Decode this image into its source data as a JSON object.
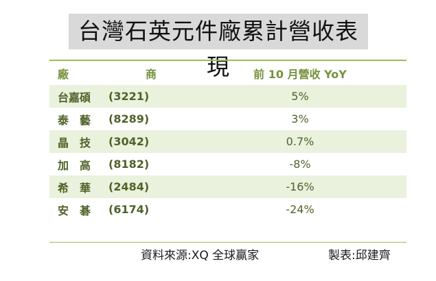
{
  "title": "台灣石英元件廠累計營收表現",
  "chart_data": {
    "type": "table",
    "columns": [
      "廠　　商",
      "前 10 月營收 YoY"
    ],
    "column_header_name_left": "廠",
    "column_header_name_right": "商",
    "rows": [
      {
        "name": "台嘉碩",
        "code": "(3221)",
        "yoy": "5%"
      },
      {
        "name": "泰　藝",
        "code": "(8289)",
        "yoy": "3%"
      },
      {
        "name": "晶　技",
        "code": "(3042)",
        "yoy": "0.7%"
      },
      {
        "name": "加　高",
        "code": "(8182)",
        "yoy": "-8%"
      },
      {
        "name": "希　華",
        "code": "(2484)",
        "yoy": "-16%"
      },
      {
        "name": "安　碁",
        "code": "(6174)",
        "yoy": "-24%"
      }
    ],
    "yoy_percent": [
      5,
      3,
      0.7,
      -8,
      -16,
      -24
    ]
  },
  "footer": {
    "source": "資料來源:XQ 全球贏家",
    "author": "製表:邱建齊"
  },
  "colors": {
    "accent_line": "#9bbb59",
    "row_shade": "#eaf1dd",
    "text": "#4f6228",
    "header_text": "#76923c",
    "title_bg": "#d9d9d9"
  }
}
